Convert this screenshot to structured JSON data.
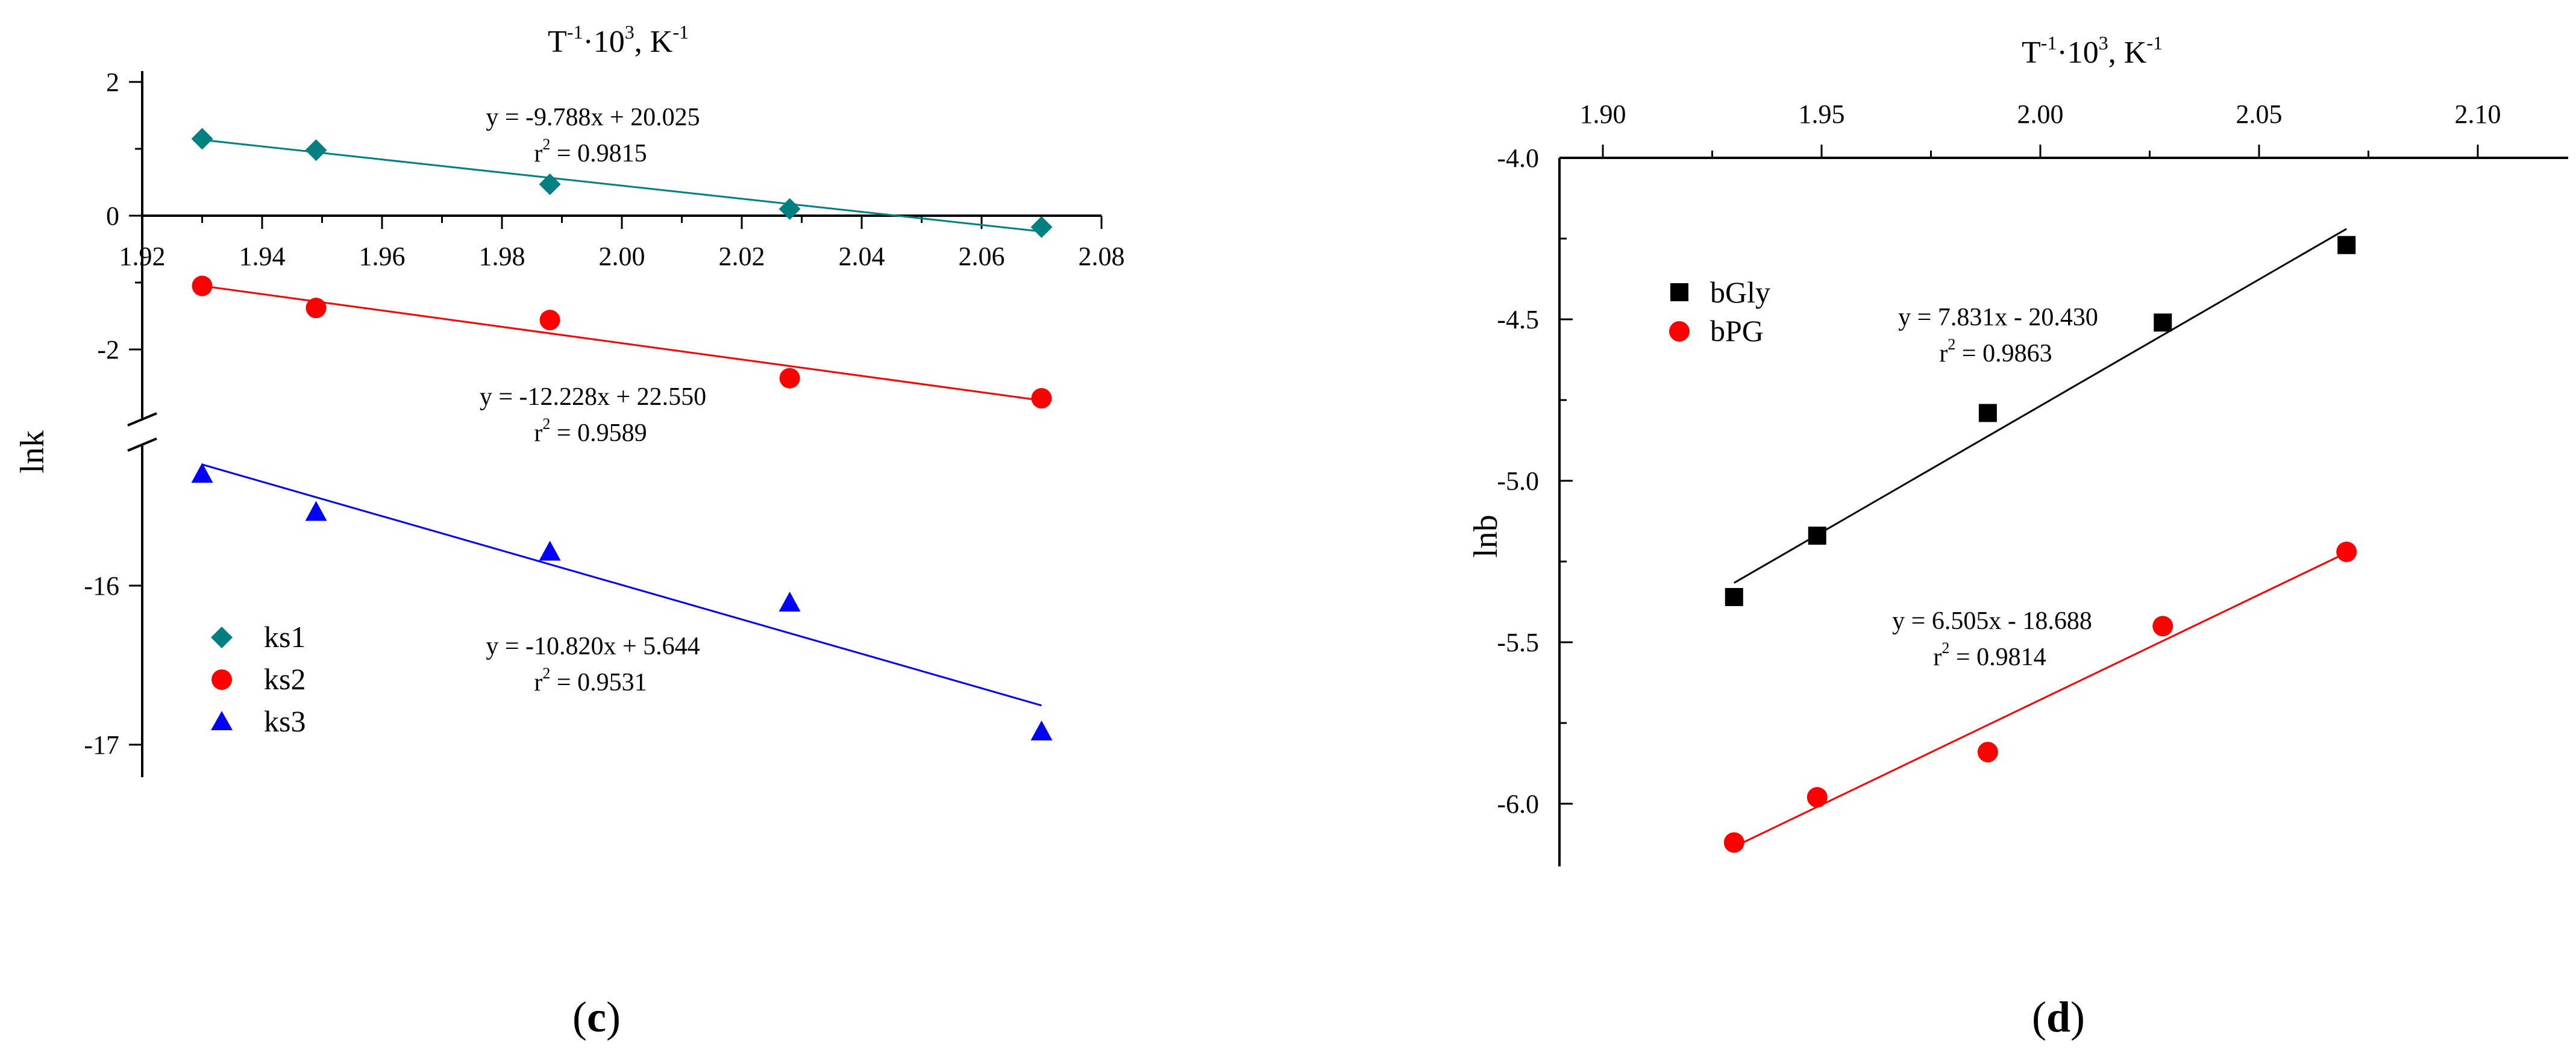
{
  "chart_data": [
    {
      "panel": "c",
      "type": "scatter",
      "title": "T",
      "title_parts": {
        "t": "T",
        "exp1": "-1",
        "mid": "·10",
        "exp2": "3",
        "tail": ", K",
        "exp3": "-1"
      },
      "xlabel": "T⁻¹·10³, K⁻¹",
      "ylabel": "lnk",
      "panel_label": "c",
      "xlim": [
        1.92,
        2.08
      ],
      "x_ticks": [
        "1.92",
        "1.94",
        "1.96",
        "1.98",
        "2.00",
        "2.02",
        "2.04",
        "2.06",
        "2.08"
      ],
      "y_ticks_upper": [
        "2",
        "0",
        "-2"
      ],
      "y_ticks_lower": [
        "-16",
        "-17"
      ],
      "axis_break": true,
      "legend_position": "bottom-left",
      "series": [
        {
          "name": "ks1",
          "color": "#008080",
          "marker": "diamond",
          "x": [
            1.93,
            1.949,
            1.988,
            2.028,
            2.07
          ],
          "y": [
            1.15,
            0.98,
            0.47,
            0.1,
            -0.17
          ],
          "fit": {
            "slope": -9.788,
            "intercept": 20.025
          },
          "equation": "y = -9.788x + 20.025",
          "r2_label": "r",
          "r2_value": " = 0.9815"
        },
        {
          "name": "ks2",
          "color": "#ff0000",
          "marker": "circle",
          "x": [
            1.93,
            1.949,
            1.988,
            2.028,
            2.07
          ],
          "y": [
            -1.05,
            -1.38,
            -1.56,
            -2.43,
            -2.73
          ],
          "fit": {
            "slope": -12.228,
            "intercept": 22.55
          },
          "equation": "y = -12.228x + 22.550",
          "r2_label": "r",
          "r2_value": " = 0.9589"
        },
        {
          "name": "ks3",
          "color": "#0000ff",
          "marker": "triangle",
          "x": [
            1.93,
            1.949,
            1.988,
            2.028,
            2.07
          ],
          "y": [
            -15.3,
            -15.54,
            -15.79,
            -16.11,
            -16.92
          ],
          "fit": {
            "slope": -10.82,
            "intercept": 5.644
          },
          "equation": "y = -10.820x + 5.644",
          "r2_label": "r",
          "r2_value": " = 0.9531"
        }
      ]
    },
    {
      "panel": "d",
      "type": "scatter",
      "title": "T",
      "title_parts": {
        "t": "T",
        "exp1": "-1",
        "mid": "·10",
        "exp2": "3",
        "tail": ", K",
        "exp3": "-1"
      },
      "xlabel": "T⁻¹·10³, K⁻¹",
      "ylabel": "lnb",
      "panel_label": "d",
      "xlim": [
        1.9,
        2.12
      ],
      "ylim": [
        -6.2,
        -4.0
      ],
      "x_ticks": [
        "1.90",
        "1.95",
        "2.00",
        "2.05",
        "2.10"
      ],
      "y_ticks": [
        "-4.0",
        "-4.5",
        "-5.0",
        "-5.5",
        "-6.0"
      ],
      "legend_position": "top-left",
      "series": [
        {
          "name": "bGly",
          "color": "#000000",
          "marker": "square",
          "x": [
            1.93,
            1.949,
            1.988,
            2.028,
            2.07
          ],
          "y": [
            -5.36,
            -5.17,
            -4.79,
            -4.51,
            -4.27
          ],
          "fit": {
            "slope": 7.831,
            "intercept": -20.43
          },
          "equation": "y = 7.831x - 20.430",
          "r2_label": "r",
          "r2_value": " = 0.9863"
        },
        {
          "name": "bPG",
          "color": "#ff0000",
          "marker": "circle",
          "x": [
            1.93,
            1.949,
            1.988,
            2.028,
            2.07
          ],
          "y": [
            -6.12,
            -5.98,
            -5.84,
            -5.45,
            -5.22
          ],
          "fit": {
            "slope": 6.505,
            "intercept": -18.688
          },
          "equation": "y = 6.505x - 18.688",
          "r2_label": "r",
          "r2_value": " = 0.9814"
        }
      ]
    }
  ]
}
